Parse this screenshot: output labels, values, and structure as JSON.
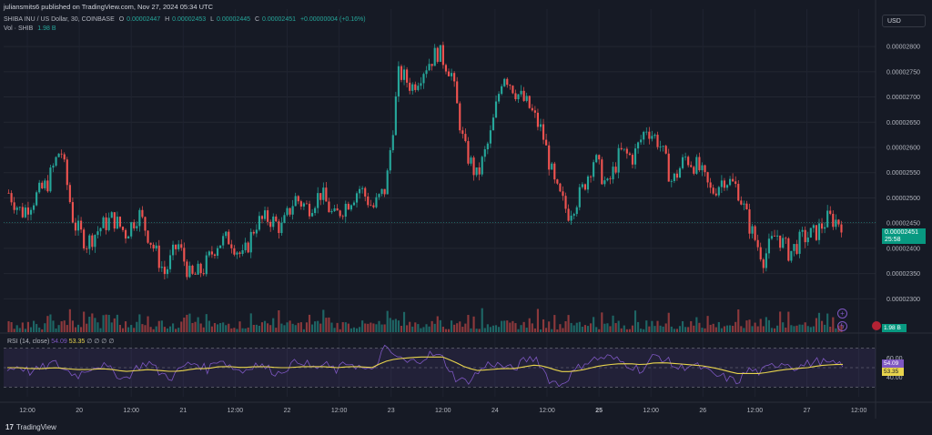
{
  "header": {
    "published": "juliansmits6 published on TradingView.com, Nov 27, 2024 05:34 UTC",
    "symbol": "SHIBA INU / US Dollar, 30, COINBASE",
    "o_key": "O",
    "o": "0.00002447",
    "h_key": "H",
    "h": "0.00002453",
    "l_key": "L",
    "l": "0.00002445",
    "c_key": "C",
    "c": "0.00002451",
    "change": "+0.00000004 (+0.16%)",
    "vol_label": "Vol · SHIB",
    "vol_value": "1.98 B"
  },
  "currency": "USD",
  "last_price": {
    "value": "0.00002451",
    "countdown": "25:58"
  },
  "volume_tag": "1.98 B",
  "rsi": {
    "label": "RSI (14, close)",
    "value1": "54.09",
    "value2": "53.35",
    "dots": "∅ ∅ ∅ ∅"
  },
  "brand": "TradingView",
  "colors": {
    "up": "#26a69a",
    "down": "#ef5350",
    "rsi_line": "#7e57c2",
    "rsi_ma": "#e8d44d",
    "price_line": "#26a69a"
  },
  "chart_data": [
    {
      "type": "candlestick",
      "title": "SHIBA INU / US Dollar, 30, COINBASE",
      "ylim": [
        2.27e-05,
        2.82e-05
      ],
      "yticks": [
        "0.00002300",
        "0.00002350",
        "0.00002400",
        "0.00002450",
        "0.00002500",
        "0.00002550",
        "0.00002600",
        "0.00002650",
        "0.00002700",
        "0.00002750",
        "0.00002800"
      ],
      "xticks": [
        "12:00",
        "20",
        "12:00",
        "21",
        "12:00",
        "22",
        "12:00",
        "23",
        "12:00",
        "24",
        "12:00",
        "25",
        "12:00",
        "26",
        "12:00",
        "27",
        "12:00"
      ],
      "close_path": [
        {
          "t": "19 06:00",
          "v": 2.51e-05
        },
        {
          "t": "19 09:00",
          "v": 2.47e-05
        },
        {
          "t": "19 12:00",
          "v": 2.5e-05
        },
        {
          "t": "19 15:00",
          "v": 2.53e-05
        },
        {
          "t": "19 18:00",
          "v": 2.6e-05
        },
        {
          "t": "19 21:00",
          "v": 2.45e-05
        },
        {
          "t": "20 00:00",
          "v": 2.41e-05
        },
        {
          "t": "20 03:00",
          "v": 2.44e-05
        },
        {
          "t": "20 06:00",
          "v": 2.46e-05
        },
        {
          "t": "20 09:00",
          "v": 2.43e-05
        },
        {
          "t": "20 12:00",
          "v": 2.47e-05
        },
        {
          "t": "20 15:00",
          "v": 2.41e-05
        },
        {
          "t": "20 18:00",
          "v": 2.35e-05
        },
        {
          "t": "20 21:00",
          "v": 2.41e-05
        },
        {
          "t": "21 00:00",
          "v": 2.34e-05
        },
        {
          "t": "21 03:00",
          "v": 2.36e-05
        },
        {
          "t": "21 06:00",
          "v": 2.41e-05
        },
        {
          "t": "21 09:00",
          "v": 2.42e-05
        },
        {
          "t": "21 12:00",
          "v": 2.38e-05
        },
        {
          "t": "21 15:00",
          "v": 2.45e-05
        },
        {
          "t": "21 18:00",
          "v": 2.46e-05
        },
        {
          "t": "21 21:00",
          "v": 2.44e-05
        },
        {
          "t": "22 00:00",
          "v": 2.5e-05
        },
        {
          "t": "22 03:00",
          "v": 2.48e-05
        },
        {
          "t": "22 06:00",
          "v": 2.51e-05
        },
        {
          "t": "22 09:00",
          "v": 2.46e-05
        },
        {
          "t": "22 12:00",
          "v": 2.49e-05
        },
        {
          "t": "22 15:00",
          "v": 2.52e-05
        },
        {
          "t": "22 18:00",
          "v": 2.48e-05
        },
        {
          "t": "22 21:00",
          "v": 2.52e-05
        },
        {
          "t": "23 00:00",
          "v": 2.75e-05
        },
        {
          "t": "23 03:00",
          "v": 2.72e-05
        },
        {
          "t": "23 06:00",
          "v": 2.76e-05
        },
        {
          "t": "23 09:00",
          "v": 2.79e-05
        },
        {
          "t": "23 12:00",
          "v": 2.75e-05
        },
        {
          "t": "23 15:00",
          "v": 2.6e-05
        },
        {
          "t": "23 18:00",
          "v": 2.54e-05
        },
        {
          "t": "23 21:00",
          "v": 2.62e-05
        },
        {
          "t": "24 00:00",
          "v": 2.75e-05
        },
        {
          "t": "24 03:00",
          "v": 2.71e-05
        },
        {
          "t": "24 06:00",
          "v": 2.68e-05
        },
        {
          "t": "24 09:00",
          "v": 2.63e-05
        },
        {
          "t": "24 12:00",
          "v": 2.52e-05
        },
        {
          "t": "24 15:00",
          "v": 2.47e-05
        },
        {
          "t": "24 18:00",
          "v": 2.51e-05
        },
        {
          "t": "24 21:00",
          "v": 2.58e-05
        },
        {
          "t": "25 00:00",
          "v": 2.52e-05
        },
        {
          "t": "25 03:00",
          "v": 2.59e-05
        },
        {
          "t": "25 06:00",
          "v": 2.58e-05
        },
        {
          "t": "25 09:00",
          "v": 2.64e-05
        },
        {
          "t": "25 12:00",
          "v": 2.61e-05
        },
        {
          "t": "25 15:00",
          "v": 2.53e-05
        },
        {
          "t": "25 18:00",
          "v": 2.58e-05
        },
        {
          "t": "25 21:00",
          "v": 2.56e-05
        },
        {
          "t": "26 00:00",
          "v": 2.51e-05
        },
        {
          "t": "26 03:00",
          "v": 2.54e-05
        },
        {
          "t": "26 06:00",
          "v": 2.52e-05
        },
        {
          "t": "26 09:00",
          "v": 2.44e-05
        },
        {
          "t": "26 12:00",
          "v": 2.38e-05
        },
        {
          "t": "26 15:00",
          "v": 2.43e-05
        },
        {
          "t": "26 18:00",
          "v": 2.39e-05
        },
        {
          "t": "26 21:00",
          "v": 2.42e-05
        },
        {
          "t": "27 00:00",
          "v": 2.43e-05
        },
        {
          "t": "27 03:00",
          "v": 2.46e-05
        },
        {
          "t": "27 05:30",
          "v": 2.451e-05
        }
      ]
    },
    {
      "type": "line",
      "title": "RSI (14, close)",
      "ylim": [
        20,
        80
      ],
      "yticks": [
        "40.00",
        "60.00"
      ],
      "series": [
        {
          "name": "RSI",
          "values": [
            48,
            52,
            45,
            50,
            55,
            47,
            42,
            50,
            53,
            46,
            38,
            50,
            56,
            44,
            40,
            52,
            55,
            48,
            60,
            51,
            46,
            54,
            50,
            44,
            52,
            58,
            49,
            53,
            47,
            56,
            50,
            45,
            70,
            62,
            55,
            58,
            64,
            60,
            40,
            35,
            45,
            55,
            52,
            48,
            58,
            60,
            38,
            32,
            44,
            55,
            59,
            61,
            57,
            52,
            47,
            63,
            58,
            49,
            53,
            50,
            42,
            40,
            35,
            48,
            45,
            52,
            56,
            50,
            54,
            57,
            53,
            54
          ]
        },
        {
          "name": "MA",
          "values": [
            50,
            50,
            49,
            49,
            50,
            49,
            48,
            48,
            49,
            48,
            46,
            47,
            48,
            47,
            46,
            47,
            49,
            49,
            51,
            51,
            50,
            51,
            51,
            50,
            50,
            51,
            51,
            51,
            50,
            51,
            51,
            50,
            56,
            59,
            60,
            61,
            61,
            61,
            56,
            50,
            47,
            48,
            49,
            49,
            51,
            53,
            50,
            46,
            46,
            48,
            51,
            53,
            54,
            54,
            53,
            55,
            55,
            54,
            53,
            52,
            50,
            47,
            44,
            44,
            44,
            46,
            48,
            49,
            50,
            52,
            53,
            53.35
          ]
        }
      ]
    }
  ]
}
